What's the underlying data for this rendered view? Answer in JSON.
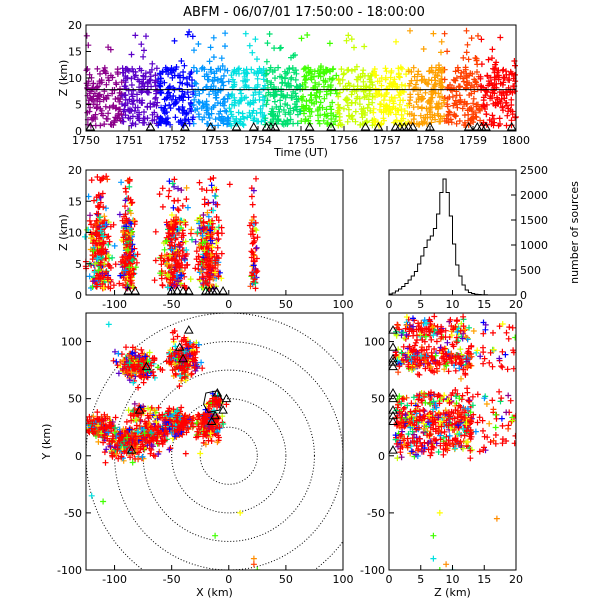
{
  "title": "ABFM - 06/07/01 17:50:00 - 18:00:00",
  "colors": {
    "marker_black": "#000000",
    "range_ring": "#000000",
    "time_rainbow": [
      "#8b008b",
      "#5a00c8",
      "#0000ff",
      "#0096ff",
      "#00e0e0",
      "#00e070",
      "#40ff00",
      "#c8ff00",
      "#ffff00",
      "#ffa000",
      "#ff4000",
      "#ff0000"
    ]
  },
  "chart_data": [
    {
      "id": "time_height",
      "type": "scatter",
      "xlabel": "Time (UT)",
      "ylabel": "Z (km)",
      "xlim": [
        1750,
        1800
      ],
      "ylim": [
        0,
        20
      ],
      "xticks": [
        "1750",
        "1751",
        "1752",
        "1753",
        "1754",
        "1755",
        "1756",
        "1757",
        "1758",
        "1759",
        "1800"
      ],
      "yticks": [
        "0",
        "5",
        "10",
        "15",
        "20"
      ],
      "reference_line_z": 7.8,
      "source_altitude_band_km": [
        1,
        12
      ],
      "color_by": "time",
      "marker": "+"
    },
    {
      "id": "x_height",
      "type": "scatter",
      "xlabel": "",
      "ylabel": "Z (km)",
      "xlim": [
        -125,
        100
      ],
      "ylim": [
        0,
        20
      ],
      "xticks": [
        "-100",
        "-50",
        "0",
        "50",
        "100"
      ],
      "yticks": [
        "0",
        "5",
        "10",
        "15",
        "20"
      ],
      "clusters_x_km": [
        -113,
        -88,
        -48,
        -18,
        22
      ],
      "color_by": "time",
      "marker": "+"
    },
    {
      "id": "altitude_histogram",
      "type": "line",
      "xlabel": "",
      "ylabel": "number of sources",
      "xlim": [
        0,
        20
      ],
      "ylim": [
        0,
        2500
      ],
      "xticks": [
        "0",
        "5",
        "10",
        "15",
        "20"
      ],
      "yticks": [
        "0",
        "500",
        "1000",
        "1500",
        "2000",
        "2500"
      ],
      "x": [
        0,
        0.5,
        1,
        1.5,
        2,
        2.5,
        3,
        3.5,
        4,
        4.5,
        5,
        5.5,
        6,
        6.5,
        7,
        7.5,
        8,
        8.5,
        9,
        9.5,
        10,
        10.5,
        11,
        11.5,
        12,
        12.5,
        13,
        13.5,
        14,
        14.5,
        15,
        15.5,
        16,
        16.5,
        17,
        17.5,
        18,
        18.5,
        19,
        19.5
      ],
      "values": [
        20,
        40,
        80,
        120,
        170,
        230,
        300,
        380,
        470,
        620,
        780,
        950,
        1100,
        1180,
        1330,
        1620,
        2050,
        2320,
        2050,
        1580,
        1020,
        600,
        380,
        200,
        100,
        50,
        30,
        15,
        10,
        5,
        5,
        0,
        0,
        0,
        0,
        0,
        0,
        0,
        0,
        0
      ]
    },
    {
      "id": "plan_view",
      "type": "scatter",
      "xlabel": "X (km)",
      "ylabel": "Y (km)",
      "xlim": [
        -125,
        100
      ],
      "ylim": [
        -100,
        125
      ],
      "xticks": [
        "-100",
        "-50",
        "0",
        "50",
        "100"
      ],
      "yticks": [
        "-100",
        "-50",
        "0",
        "50",
        "100"
      ],
      "range_rings_km": [
        25,
        50,
        75,
        100,
        125
      ],
      "color_by": "time",
      "marker": "+"
    },
    {
      "id": "z_y",
      "type": "scatter",
      "xlabel": "Z (km)",
      "ylabel": "",
      "xlim": [
        0,
        20
      ],
      "ylim": [
        -100,
        125
      ],
      "xticks": [
        "0",
        "5",
        "10",
        "15",
        "20"
      ],
      "yticks": [
        "-100",
        "-50",
        "0",
        "50",
        "100"
      ],
      "color_by": "time",
      "marker": "+"
    }
  ]
}
